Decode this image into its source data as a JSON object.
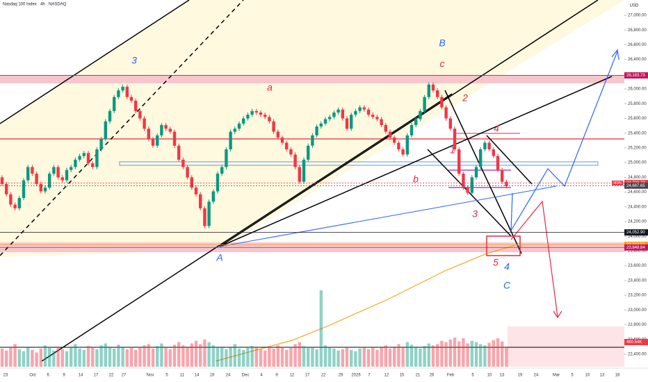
{
  "chart_data": {
    "type": "candlestick",
    "title": "Nasdaq 100 Index · 4h · NASDAQ",
    "currency": "USD",
    "ylim": [
      22230,
      27207
    ],
    "yticks": [
      {
        "value": 27000,
        "label": "27,000.00"
      },
      {
        "value": 26800,
        "label": "26,800.00"
      },
      {
        "value": 26600,
        "label": "26,600.00"
      },
      {
        "value": 26400,
        "label": "26,400.00"
      },
      {
        "value": 26200,
        "label": "26,200.00"
      },
      {
        "value": 26000,
        "label": "26,000.00"
      },
      {
        "value": 25800,
        "label": "25,800.00"
      },
      {
        "value": 25600,
        "label": "25,600.00"
      },
      {
        "value": 25400,
        "label": "25,400.00"
      },
      {
        "value": 25200,
        "label": "25,200.00"
      },
      {
        "value": 25000,
        "label": "25,000.00"
      },
      {
        "value": 24800,
        "label": "24,800.00"
      },
      {
        "value": 24600,
        "label": "24,600.00"
      },
      {
        "value": 24400,
        "label": "24,400.00"
      },
      {
        "value": 24200,
        "label": "24,200.00"
      },
      {
        "value": 24000,
        "label": "24,000.00"
      },
      {
        "value": 23800,
        "label": "23,800.00"
      },
      {
        "value": 23600,
        "label": "23,600.00"
      },
      {
        "value": 23400,
        "label": "23,400.00"
      },
      {
        "value": 23200,
        "label": "23,200.00"
      },
      {
        "value": 23000,
        "label": "23,000.00"
      },
      {
        "value": 22800,
        "label": "22,800.00"
      },
      {
        "value": 22600,
        "label": "22,600.00"
      },
      {
        "value": 22400,
        "label": "22,400.00"
      }
    ],
    "xtick_labels": [
      "23",
      "Oct",
      "6",
      "9",
      "14",
      "17",
      "22",
      "27",
      "Nov",
      "5",
      "11",
      "14",
      "19",
      "24",
      "Dec",
      "4",
      "9",
      "12",
      "17",
      "22",
      "29",
      "2026",
      "7",
      "12",
      "15",
      "21",
      "26",
      "Feb",
      "5",
      "10",
      "13",
      "19",
      "24",
      "Mar",
      "5",
      "10",
      "13",
      "18"
    ],
    "up_color": "#089981",
    "down_color": "#f23645",
    "ohlc": [
      [
        24800,
        24830,
        24680,
        24710
      ],
      [
        24710,
        24740,
        24540,
        24570
      ],
      [
        24570,
        24600,
        24400,
        24430
      ],
      [
        24430,
        24460,
        24350,
        24380
      ],
      [
        24380,
        24550,
        24350,
        24520
      ],
      [
        24520,
        24790,
        24490,
        24760
      ],
      [
        24760,
        24970,
        24730,
        24940
      ],
      [
        24940,
        24970,
        24820,
        24850
      ],
      [
        24850,
        24880,
        24680,
        24710
      ],
      [
        24710,
        24740,
        24580,
        24610
      ],
      [
        24610,
        24690,
        24580,
        24660
      ],
      [
        24660,
        24880,
        24630,
        24850
      ],
      [
        24850,
        24970,
        24820,
        24940
      ],
      [
        24940,
        24970,
        24770,
        24800
      ],
      [
        24800,
        24830,
        24730,
        24760
      ],
      [
        24760,
        24930,
        24730,
        24900
      ],
      [
        24900,
        24970,
        24870,
        24940
      ],
      [
        24940,
        25070,
        24910,
        25040
      ],
      [
        25040,
        25120,
        25010,
        25090
      ],
      [
        25090,
        25160,
        25060,
        25130
      ],
      [
        25130,
        25160,
        24960,
        24990
      ],
      [
        24990,
        25020,
        24910,
        24940
      ],
      [
        24940,
        25210,
        24910,
        25180
      ],
      [
        25180,
        25350,
        25150,
        25320
      ],
      [
        25320,
        25590,
        25290,
        25560
      ],
      [
        25560,
        25730,
        25530,
        25700
      ],
      [
        25700,
        25920,
        25670,
        25890
      ],
      [
        25890,
        26010,
        25860,
        25980
      ],
      [
        25980,
        26060,
        25950,
        26030
      ],
      [
        26030,
        26060,
        25860,
        25890
      ],
      [
        25890,
        25920,
        25810,
        25840
      ],
      [
        25840,
        25870,
        25670,
        25700
      ],
      [
        25700,
        25730,
        25570,
        25600
      ],
      [
        25600,
        25630,
        25430,
        25460
      ],
      [
        25460,
        25490,
        25290,
        25320
      ],
      [
        25320,
        25350,
        25200,
        25230
      ],
      [
        25230,
        25400,
        25200,
        25370
      ],
      [
        25370,
        25540,
        25340,
        25510
      ],
      [
        25510,
        25540,
        25430,
        25460
      ],
      [
        25460,
        25490,
        25390,
        25420
      ],
      [
        25420,
        25450,
        25200,
        25230
      ],
      [
        25230,
        25260,
        25010,
        25040
      ],
      [
        25040,
        25070,
        24910,
        24940
      ],
      [
        24940,
        24970,
        24770,
        24800
      ],
      [
        24800,
        24830,
        24630,
        24660
      ],
      [
        24660,
        24690,
        24540,
        24570
      ],
      [
        24570,
        24600,
        24350,
        24380
      ],
      [
        24380,
        24410,
        24110,
        24140
      ],
      [
        24140,
        24500,
        24110,
        24470
      ],
      [
        24470,
        24640,
        24440,
        24610
      ],
      [
        24610,
        24880,
        24580,
        24850
      ],
      [
        24850,
        24970,
        24820,
        24940
      ],
      [
        24940,
        25210,
        24910,
        25180
      ],
      [
        25180,
        25450,
        25150,
        25420
      ],
      [
        25420,
        25490,
        25390,
        25460
      ],
      [
        25460,
        25560,
        25430,
        25530
      ],
      [
        25530,
        25630,
        25500,
        25600
      ],
      [
        25600,
        25680,
        25570,
        25650
      ],
      [
        25650,
        25730,
        25620,
        25700
      ],
      [
        25700,
        25730,
        25650,
        25680
      ],
      [
        25680,
        25710,
        25620,
        25650
      ],
      [
        25650,
        25680,
        25590,
        25620
      ],
      [
        25620,
        25650,
        25530,
        25560
      ],
      [
        25560,
        25590,
        25390,
        25420
      ],
      [
        25420,
        25450,
        25310,
        25340
      ],
      [
        25340,
        25370,
        25240,
        25270
      ],
      [
        25270,
        25300,
        25150,
        25180
      ],
      [
        25180,
        25210,
        25080,
        25110
      ],
      [
        25110,
        25140,
        24910,
        24940
      ],
      [
        24940,
        24970,
        24710,
        24740
      ],
      [
        24740,
        25070,
        24710,
        25040
      ],
      [
        25040,
        25260,
        25010,
        25230
      ],
      [
        25230,
        25400,
        25200,
        25370
      ],
      [
        25370,
        25520,
        25340,
        25490
      ],
      [
        25490,
        25560,
        25460,
        25530
      ],
      [
        25530,
        25620,
        25500,
        25590
      ],
      [
        25590,
        25650,
        25560,
        25620
      ],
      [
        25620,
        25710,
        25590,
        25680
      ],
      [
        25680,
        25750,
        25650,
        25720
      ],
      [
        25720,
        25750,
        25570,
        25600
      ],
      [
        25600,
        25630,
        25430,
        25460
      ],
      [
        25460,
        25680,
        25430,
        25650
      ],
      [
        25650,
        25730,
        25620,
        25700
      ],
      [
        25700,
        25780,
        25670,
        25750
      ],
      [
        25750,
        25780,
        25690,
        25720
      ],
      [
        25720,
        25750,
        25620,
        25650
      ],
      [
        25650,
        25680,
        25590,
        25620
      ],
      [
        25620,
        25650,
        25560,
        25590
      ],
      [
        25590,
        25620,
        25480,
        25510
      ],
      [
        25510,
        25540,
        25390,
        25420
      ],
      [
        25420,
        25450,
        25310,
        25340
      ],
      [
        25340,
        25370,
        25240,
        25270
      ],
      [
        25270,
        25300,
        25150,
        25180
      ],
      [
        25180,
        25210,
        25080,
        25110
      ],
      [
        25110,
        25400,
        25080,
        25370
      ],
      [
        25370,
        25540,
        25340,
        25510
      ],
      [
        25510,
        25620,
        25480,
        25590
      ],
      [
        25590,
        25730,
        25560,
        25700
      ],
      [
        25700,
        25920,
        25670,
        25890
      ],
      [
        25890,
        26090,
        25860,
        26060
      ],
      [
        26060,
        26090,
        25950,
        25980
      ],
      [
        25980,
        26010,
        25860,
        25890
      ],
      [
        25890,
        25920,
        25720,
        25750
      ],
      [
        25750,
        25780,
        25570,
        25600
      ],
      [
        25600,
        25630,
        25430,
        25460
      ],
      [
        25460,
        25490,
        25150,
        25180
      ],
      [
        25180,
        25210,
        24820,
        24850
      ],
      [
        24850,
        24880,
        24630,
        24660
      ],
      [
        24660,
        24690,
        24560,
        24590
      ],
      [
        24590,
        24830,
        24560,
        24800
      ],
      [
        24800,
        24970,
        24770,
        24940
      ],
      [
        24940,
        25210,
        24910,
        25180
      ],
      [
        25180,
        25300,
        25150,
        25270
      ],
      [
        25270,
        25300,
        25150,
        25180
      ],
      [
        25180,
        25210,
        25060,
        25090
      ],
      [
        25090,
        25120,
        24870,
        24900
      ],
      [
        24900,
        24930,
        24710,
        24740
      ],
      [
        24740,
        24770,
        24650,
        24680
      ]
    ],
    "volume": [
      28,
      25,
      30,
      35,
      27,
      24,
      30,
      26,
      22,
      28,
      33,
      29,
      25,
      31,
      27,
      24,
      30,
      35,
      28,
      26,
      32,
      29,
      27,
      33,
      36,
      30,
      28,
      34,
      31,
      27,
      29,
      26,
      30,
      33,
      35,
      28,
      32,
      36,
      30,
      27,
      34,
      38,
      33,
      30,
      36,
      40,
      35,
      42,
      38,
      33,
      29,
      31,
      27,
      30,
      35,
      28,
      26,
      29,
      32,
      30,
      27,
      25,
      31,
      28,
      33,
      30,
      26,
      29,
      35,
      38,
      32,
      29,
      30,
      27,
      118,
      33,
      30,
      28,
      25,
      27,
      30,
      26,
      24,
      28,
      31,
      27,
      29,
      26,
      30,
      33,
      28,
      31,
      35,
      30,
      38,
      34,
      30,
      28,
      32,
      36,
      33,
      35,
      40,
      38,
      42,
      45,
      39,
      44,
      36,
      40,
      38,
      35,
      33,
      37,
      41,
      44,
      39,
      30
    ],
    "price_tags": [
      {
        "value": 26183.73,
        "label": "26,183.73",
        "color": "#c2185b"
      },
      {
        "value": 24722.73,
        "label": "24,722.73",
        "color": "#f23645"
      },
      {
        "value": 24687.65,
        "label": "24,687.65",
        "color": "#434651"
      },
      {
        "value": 24052.9,
        "label": "24,052.90",
        "color": "#131722"
      },
      {
        "value": 23884.51,
        "label": "23,884.51",
        "color": "#f7a21b"
      },
      {
        "value": 23848.84,
        "label": "23,848.84",
        "color": "#c2185b"
      }
    ],
    "tag_marker": "MDN",
    "volume_tag": {
      "value": 460540,
      "label": "460.54K",
      "color": "#f23645"
    },
    "annotations": [
      {
        "text": "3",
        "color": "#2962ff"
      },
      {
        "text": "a",
        "color": "#e5283f"
      },
      {
        "text": "B",
        "color": "#2962ff"
      },
      {
        "text": "c",
        "color": "#e5283f"
      },
      {
        "text": "2",
        "color": "#e5283f"
      },
      {
        "text": "4",
        "color": "#e5283f"
      },
      {
        "text": "1",
        "color": "#e5283f"
      },
      {
        "text": "b",
        "color": "#e5283f"
      },
      {
        "text": "3",
        "color": "#e5283f"
      },
      {
        "text": "A",
        "color": "#2962ff"
      },
      {
        "text": "5",
        "color": "#e5283f"
      },
      {
        "text": "4",
        "color": "#2962ff"
      },
      {
        "text": "C",
        "color": "#2962ff"
      }
    ]
  }
}
